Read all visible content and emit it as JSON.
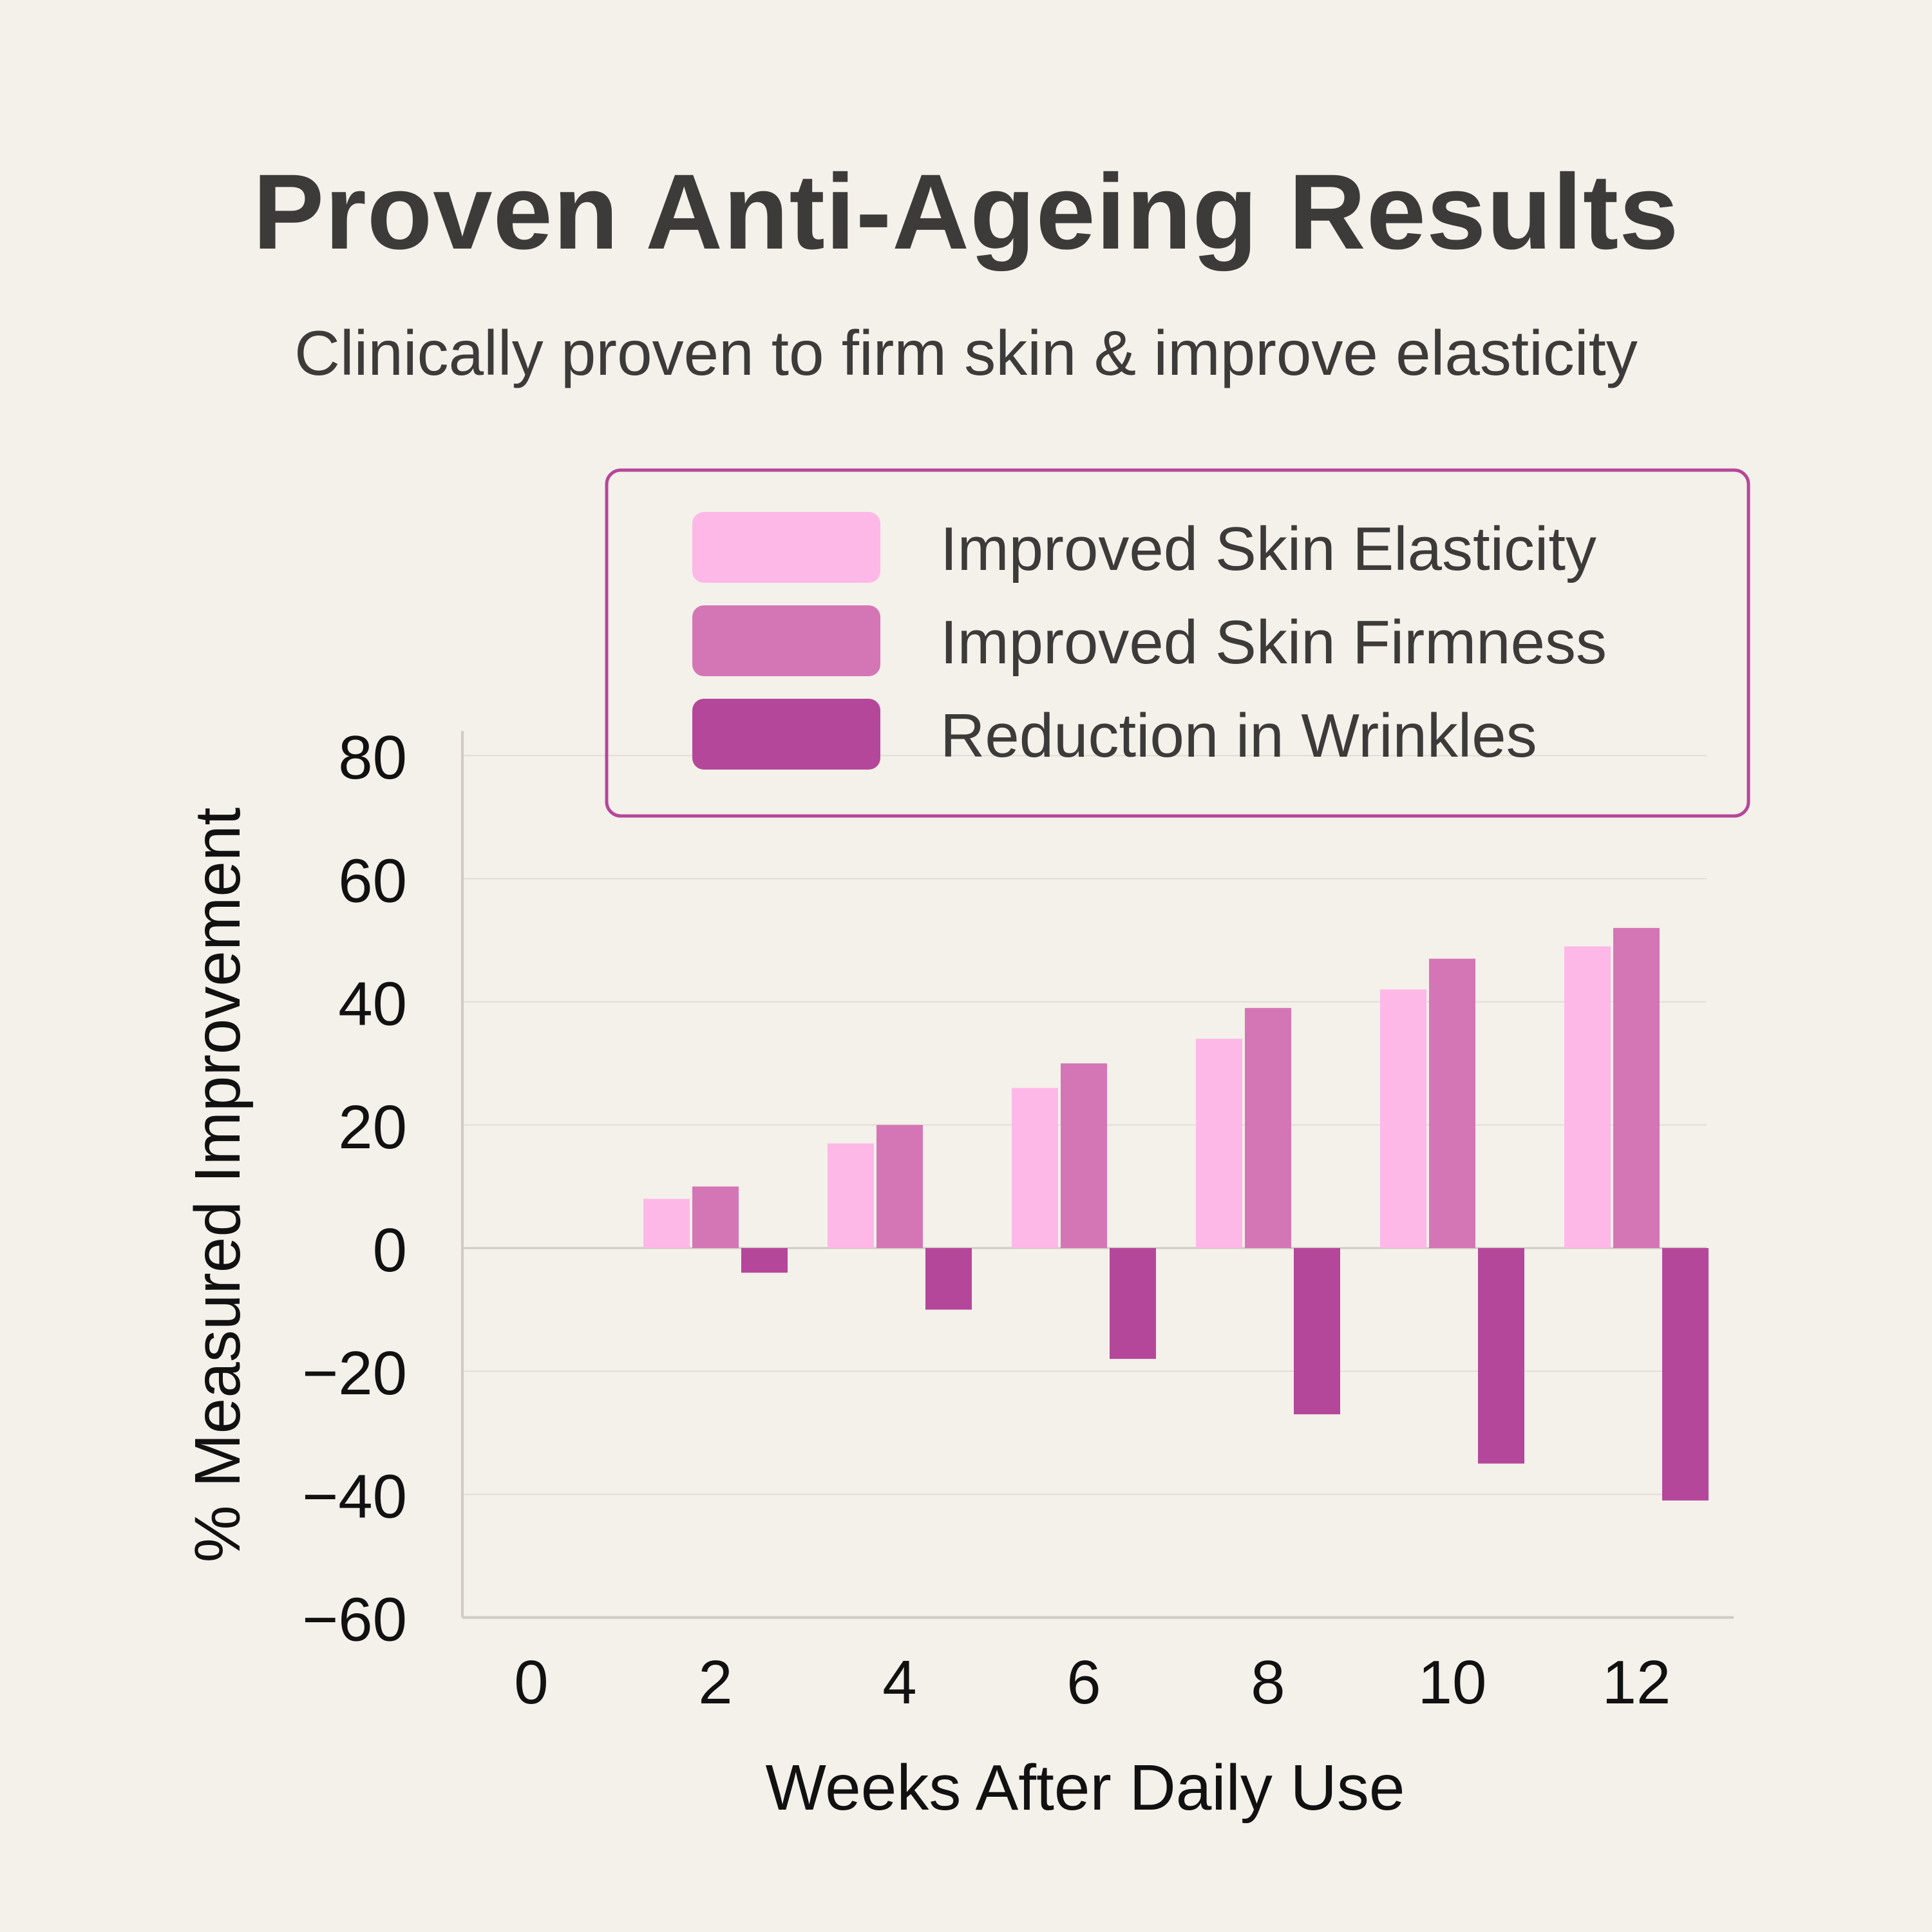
{
  "title": "Proven Anti-Ageing Results",
  "subtitle": "Clinically proven to firm skin & improve elasticity",
  "colors": {
    "background": "#f4f0ea",
    "legend_border": "#b5479a",
    "grid": "#e2ddd6",
    "axis": "#cfcac4"
  },
  "chart_data": {
    "type": "bar",
    "categories": [
      "0",
      "2",
      "4",
      "6",
      "8",
      "10",
      "12"
    ],
    "xlabel": "Weeks After Daily Use",
    "ylabel": "% Measured Improvement",
    "ylim": [
      -60,
      80
    ],
    "yticks": [
      80,
      60,
      40,
      20,
      0,
      -20,
      -40,
      -60
    ],
    "ytick_labels": [
      "80",
      "60",
      "40",
      "20",
      "0",
      "−20",
      "−40",
      "−60"
    ],
    "grid": true,
    "legend_position": "top-right",
    "series": [
      {
        "name": "Improved Skin Elasticity",
        "color": "#fdb8e8",
        "values": [
          0,
          8,
          17,
          26,
          34,
          42,
          49
        ]
      },
      {
        "name": "Improved Skin Firmness",
        "color": "#d476b5",
        "values": [
          0,
          10,
          20,
          30,
          39,
          47,
          52
        ]
      },
      {
        "name": "Reduction in Wrinkles",
        "color": "#b5479a",
        "values": [
          0,
          -4,
          -10,
          -18,
          -27,
          -35,
          -41
        ]
      }
    ]
  }
}
